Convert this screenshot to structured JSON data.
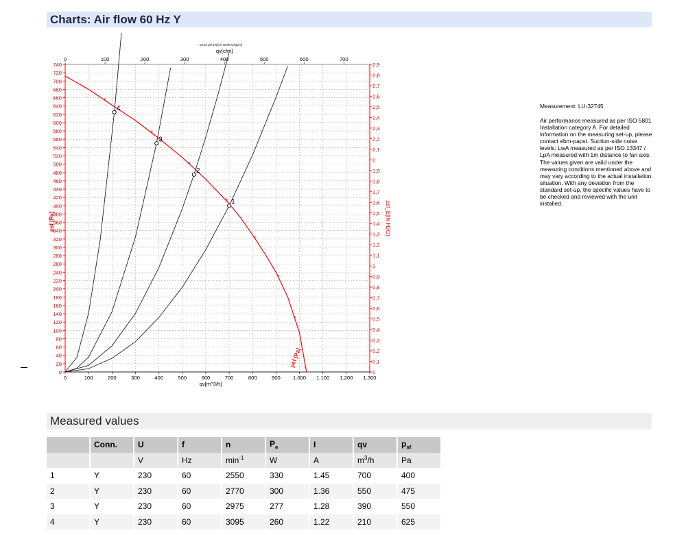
{
  "header": {
    "title": "Charts: Air flow 60 Hz Y"
  },
  "measurement": {
    "id": "Measurement: LU-32745",
    "description": "Air performance measured as per ISO 5801 Installation category A. For detailed information on the measuring set-up, please contact ebm-papst. Suction-side noise levels: LwA measured as per ISO 13347 / LpA measured with 1m distance to fan axis. The values given are valid under the measuring conditions mentioned above and may vary according to the actual installation situation. With any deviation from the standard set-up, the specific values have to be checked and reviewed with the unit installed."
  },
  "chart_data": {
    "type": "line",
    "title": "",
    "small_header": "Druck psf [Pa]/Air Whole*L/kg/m³]",
    "top_axis_label": "qv[cfm]",
    "xlabel": "qv[m^3/h]",
    "ylabel_left": "psf [Pa]",
    "ylabel_right": "psf_E[IN H2O]",
    "xlim": [
      0,
      1300
    ],
    "ylim_left": [
      0,
      740
    ],
    "ylim_right": [
      0,
      2.9
    ],
    "cfm_range": [
      0,
      765
    ],
    "x_ticks": [
      0,
      100,
      200,
      300,
      400,
      500,
      600,
      700,
      800,
      900,
      1000,
      1100,
      1200,
      1300
    ],
    "x_tick_labels": [
      "0",
      "100",
      "200",
      "300",
      "400",
      "500",
      "600",
      "700",
      "800",
      "900",
      "1.000",
      "1.100",
      "1.200",
      "1.300"
    ],
    "top_ticks": [
      0,
      100,
      200,
      300,
      400,
      500,
      600,
      700
    ],
    "y_left_step": 20,
    "y_right_step": 0.1,
    "grid": true,
    "fan_curve": {
      "name": "psf [Pa]",
      "x": [
        0,
        100,
        200,
        300,
        400,
        500,
        600,
        700,
        750,
        800,
        850,
        900,
        950,
        1000,
        1030
      ],
      "y": [
        712,
        680,
        642,
        605,
        562,
        516,
        464,
        405,
        370,
        330,
        287,
        240,
        180,
        95,
        0
      ],
      "markers_x": [
        170,
        370,
        530,
        690,
        810,
        910,
        980
      ]
    },
    "system_curves": [
      {
        "label": "1",
        "x": [
          0,
          100,
          200,
          300,
          400,
          500,
          600,
          700,
          800,
          900,
          950
        ],
        "y": [
          0,
          8,
          33,
          73,
          131,
          204,
          294,
          400,
          522,
          661,
          736
        ]
      },
      {
        "label": "2",
        "x": [
          0,
          100,
          200,
          300,
          400,
          500,
          550,
          600,
          650,
          700
        ],
        "y": [
          0,
          16,
          63,
          141,
          251,
          393,
          475,
          565,
          663,
          769
        ]
      },
      {
        "label": "3",
        "x": [
          0,
          50,
          100,
          200,
          300,
          390,
          450
        ],
        "y": [
          0,
          9,
          36,
          145,
          325,
          550,
          732
        ]
      },
      {
        "label": "4",
        "x": [
          0,
          50,
          100,
          150,
          210,
          240
        ],
        "y": [
          0,
          35,
          142,
          319,
          625,
          816
        ]
      }
    ],
    "operating_points": [
      {
        "label": "1",
        "x": 700,
        "y": 400
      },
      {
        "label": "2",
        "x": 550,
        "y": 475
      },
      {
        "label": "3",
        "x": 390,
        "y": 550
      },
      {
        "label": "4",
        "x": 210,
        "y": 625
      }
    ],
    "colors": {
      "fan_curve": "#ff0000",
      "system_curves": "#222222",
      "grid": "#9a9a9a",
      "axis_red": "#e00000"
    }
  },
  "measured_values": {
    "title": "Measured values",
    "headers": [
      "",
      "Conn.",
      "U",
      "f",
      "n",
      "P",
      "I",
      "qv",
      "p"
    ],
    "header_subs": [
      "",
      "",
      "",
      "",
      "",
      "e",
      "",
      "",
      "sf"
    ],
    "units": [
      "",
      "",
      "V",
      "Hz",
      "min",
      "W",
      "A",
      "m",
      "Pa"
    ],
    "unit_sups": [
      "",
      "",
      "",
      "",
      "-1",
      "",
      "",
      "3",
      ""
    ],
    "unit_suffix": [
      "",
      "",
      "",
      "",
      "",
      "",
      "",
      "/h",
      ""
    ],
    "rows": [
      [
        "1",
        "Y",
        "230",
        "60",
        "2550",
        "330",
        "1.45",
        "700",
        "400"
      ],
      [
        "2",
        "Y",
        "230",
        "60",
        "2770",
        "300",
        "1.36",
        "550",
        "475"
      ],
      [
        "3",
        "Y",
        "230",
        "60",
        "2975",
        "277",
        "1.28",
        "390",
        "550"
      ],
      [
        "4",
        "Y",
        "230",
        "60",
        "3095",
        "260",
        "1.22",
        "210",
        "625"
      ]
    ]
  }
}
